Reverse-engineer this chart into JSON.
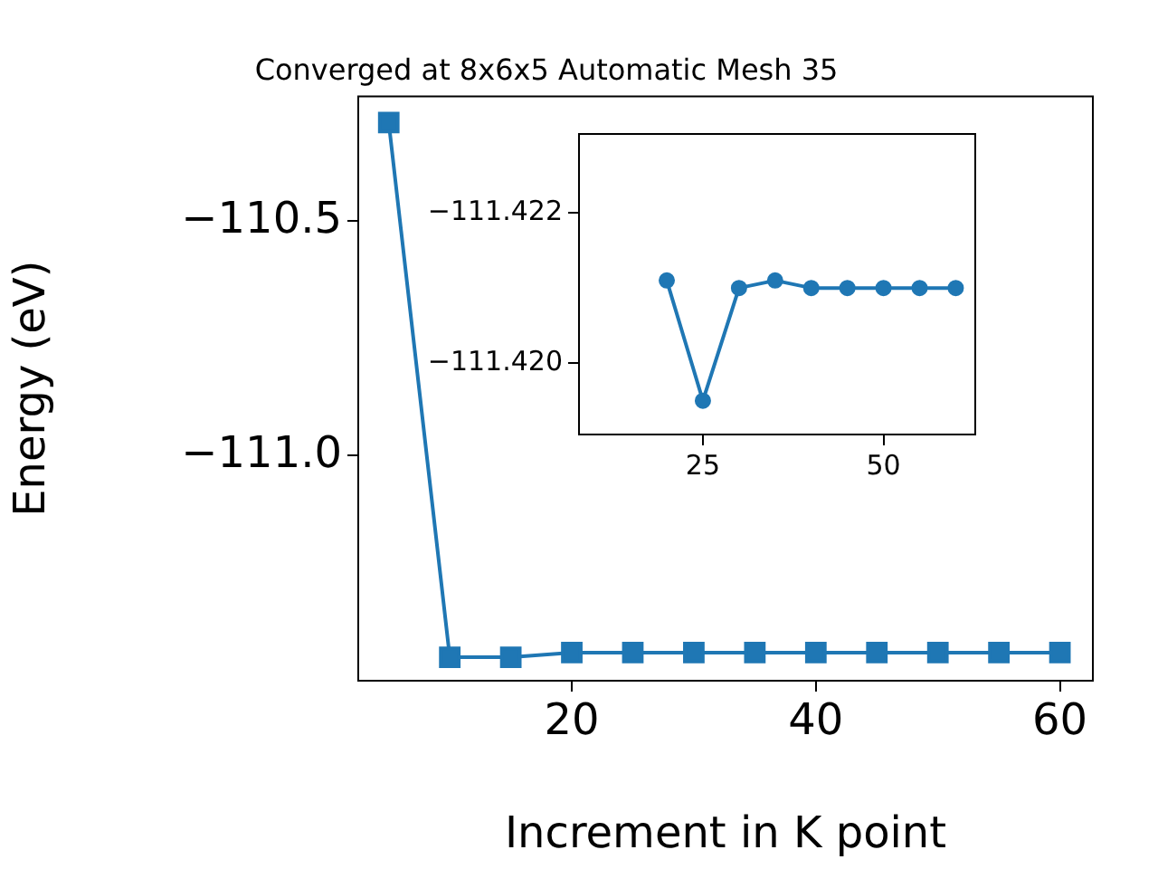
{
  "chart_data": [
    {
      "type": "line",
      "title": "Converged at 8x6x5 Automatic Mesh 35",
      "xlabel": "Increment in K point",
      "ylabel": "Energy (eV)",
      "x": [
        5,
        10,
        15,
        20,
        25,
        30,
        35,
        40,
        45,
        50,
        55,
        60
      ],
      "series": [
        {
          "color": "#1f77b4",
          "values": [
            -110.29,
            -111.43,
            -111.43,
            -111.42,
            -111.42,
            -111.42,
            -111.42,
            -111.42,
            -111.42,
            -111.42,
            -111.42,
            -111.42
          ]
        }
      ],
      "xlim": [
        2.5,
        62.7
      ],
      "ylim": [
        -111.48,
        -110.234
      ],
      "xticks": [
        20,
        40,
        60
      ],
      "yticks": [
        {
          "value": -111.0,
          "label": "−111.0"
        },
        {
          "value": -110.5,
          "label": "−110.5"
        }
      ],
      "marker": "square",
      "line_style": "solid",
      "grid": false,
      "legend": false
    },
    {
      "type": "line",
      "x": [
        20,
        25,
        30,
        35,
        40,
        45,
        50,
        55,
        60
      ],
      "series": [
        {
          "color": "#1f77b4",
          "values": [
            -111.4211,
            -111.4195,
            -111.421,
            -111.4211,
            -111.421,
            -111.421,
            -111.421,
            -111.421,
            -111.421
          ]
        }
      ],
      "xlim": [
        7.85,
        62.7
      ],
      "ylim": [
        -111.41905,
        -111.42305
      ],
      "xticks": [
        25,
        50
      ],
      "yticks": [
        {
          "value": -111.422,
          "label": "−111.422"
        },
        {
          "value": -111.42,
          "label": "−111.420"
        }
      ],
      "marker": "circle",
      "line_style": "solid",
      "grid": false,
      "legend": false
    }
  ]
}
